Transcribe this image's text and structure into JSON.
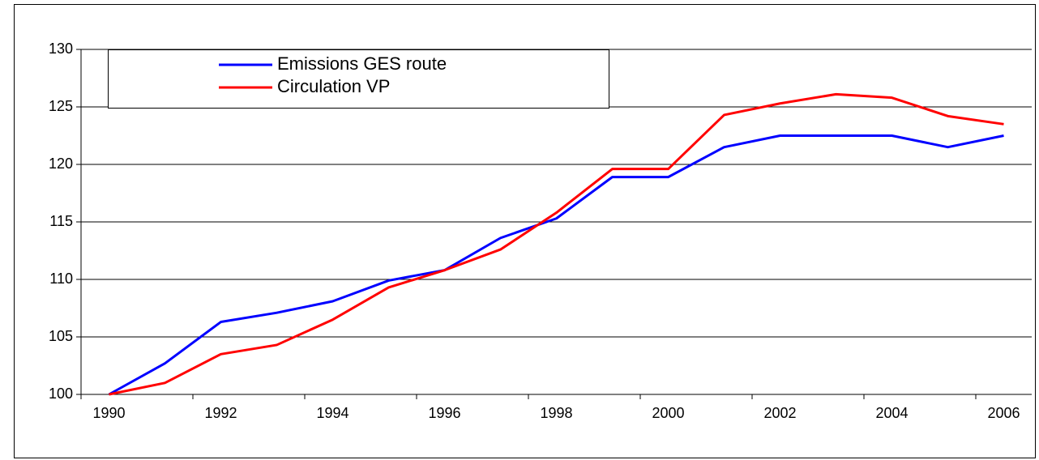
{
  "chart_data": {
    "type": "line",
    "categories": [
      "1990",
      null,
      "1992",
      null,
      "1994",
      null,
      "1996",
      null,
      "1998",
      null,
      "2000",
      null,
      "2002",
      null,
      "2004",
      null,
      "2006"
    ],
    "series": [
      {
        "name": "Emissions GES route",
        "color": "#0000ff",
        "values": [
          100,
          102.7,
          106.3,
          107.1,
          108.1,
          109.9,
          110.8,
          113.6,
          115.3,
          118.9,
          118.9,
          121.5,
          122.5,
          122.5,
          122.5,
          121.5,
          122.5
        ]
      },
      {
        "name": "Circulation VP",
        "color": "#ff0000",
        "values": [
          100,
          101.0,
          103.5,
          104.3,
          106.5,
          109.3,
          110.8,
          112.6,
          115.8,
          119.6,
          119.6,
          124.3,
          125.3,
          126.1,
          125.8,
          124.2,
          123.5
        ]
      }
    ],
    "ylim": [
      100,
      130
    ],
    "yticks": [
      100,
      105,
      110,
      115,
      120,
      125,
      130
    ],
    "grid": true
  }
}
